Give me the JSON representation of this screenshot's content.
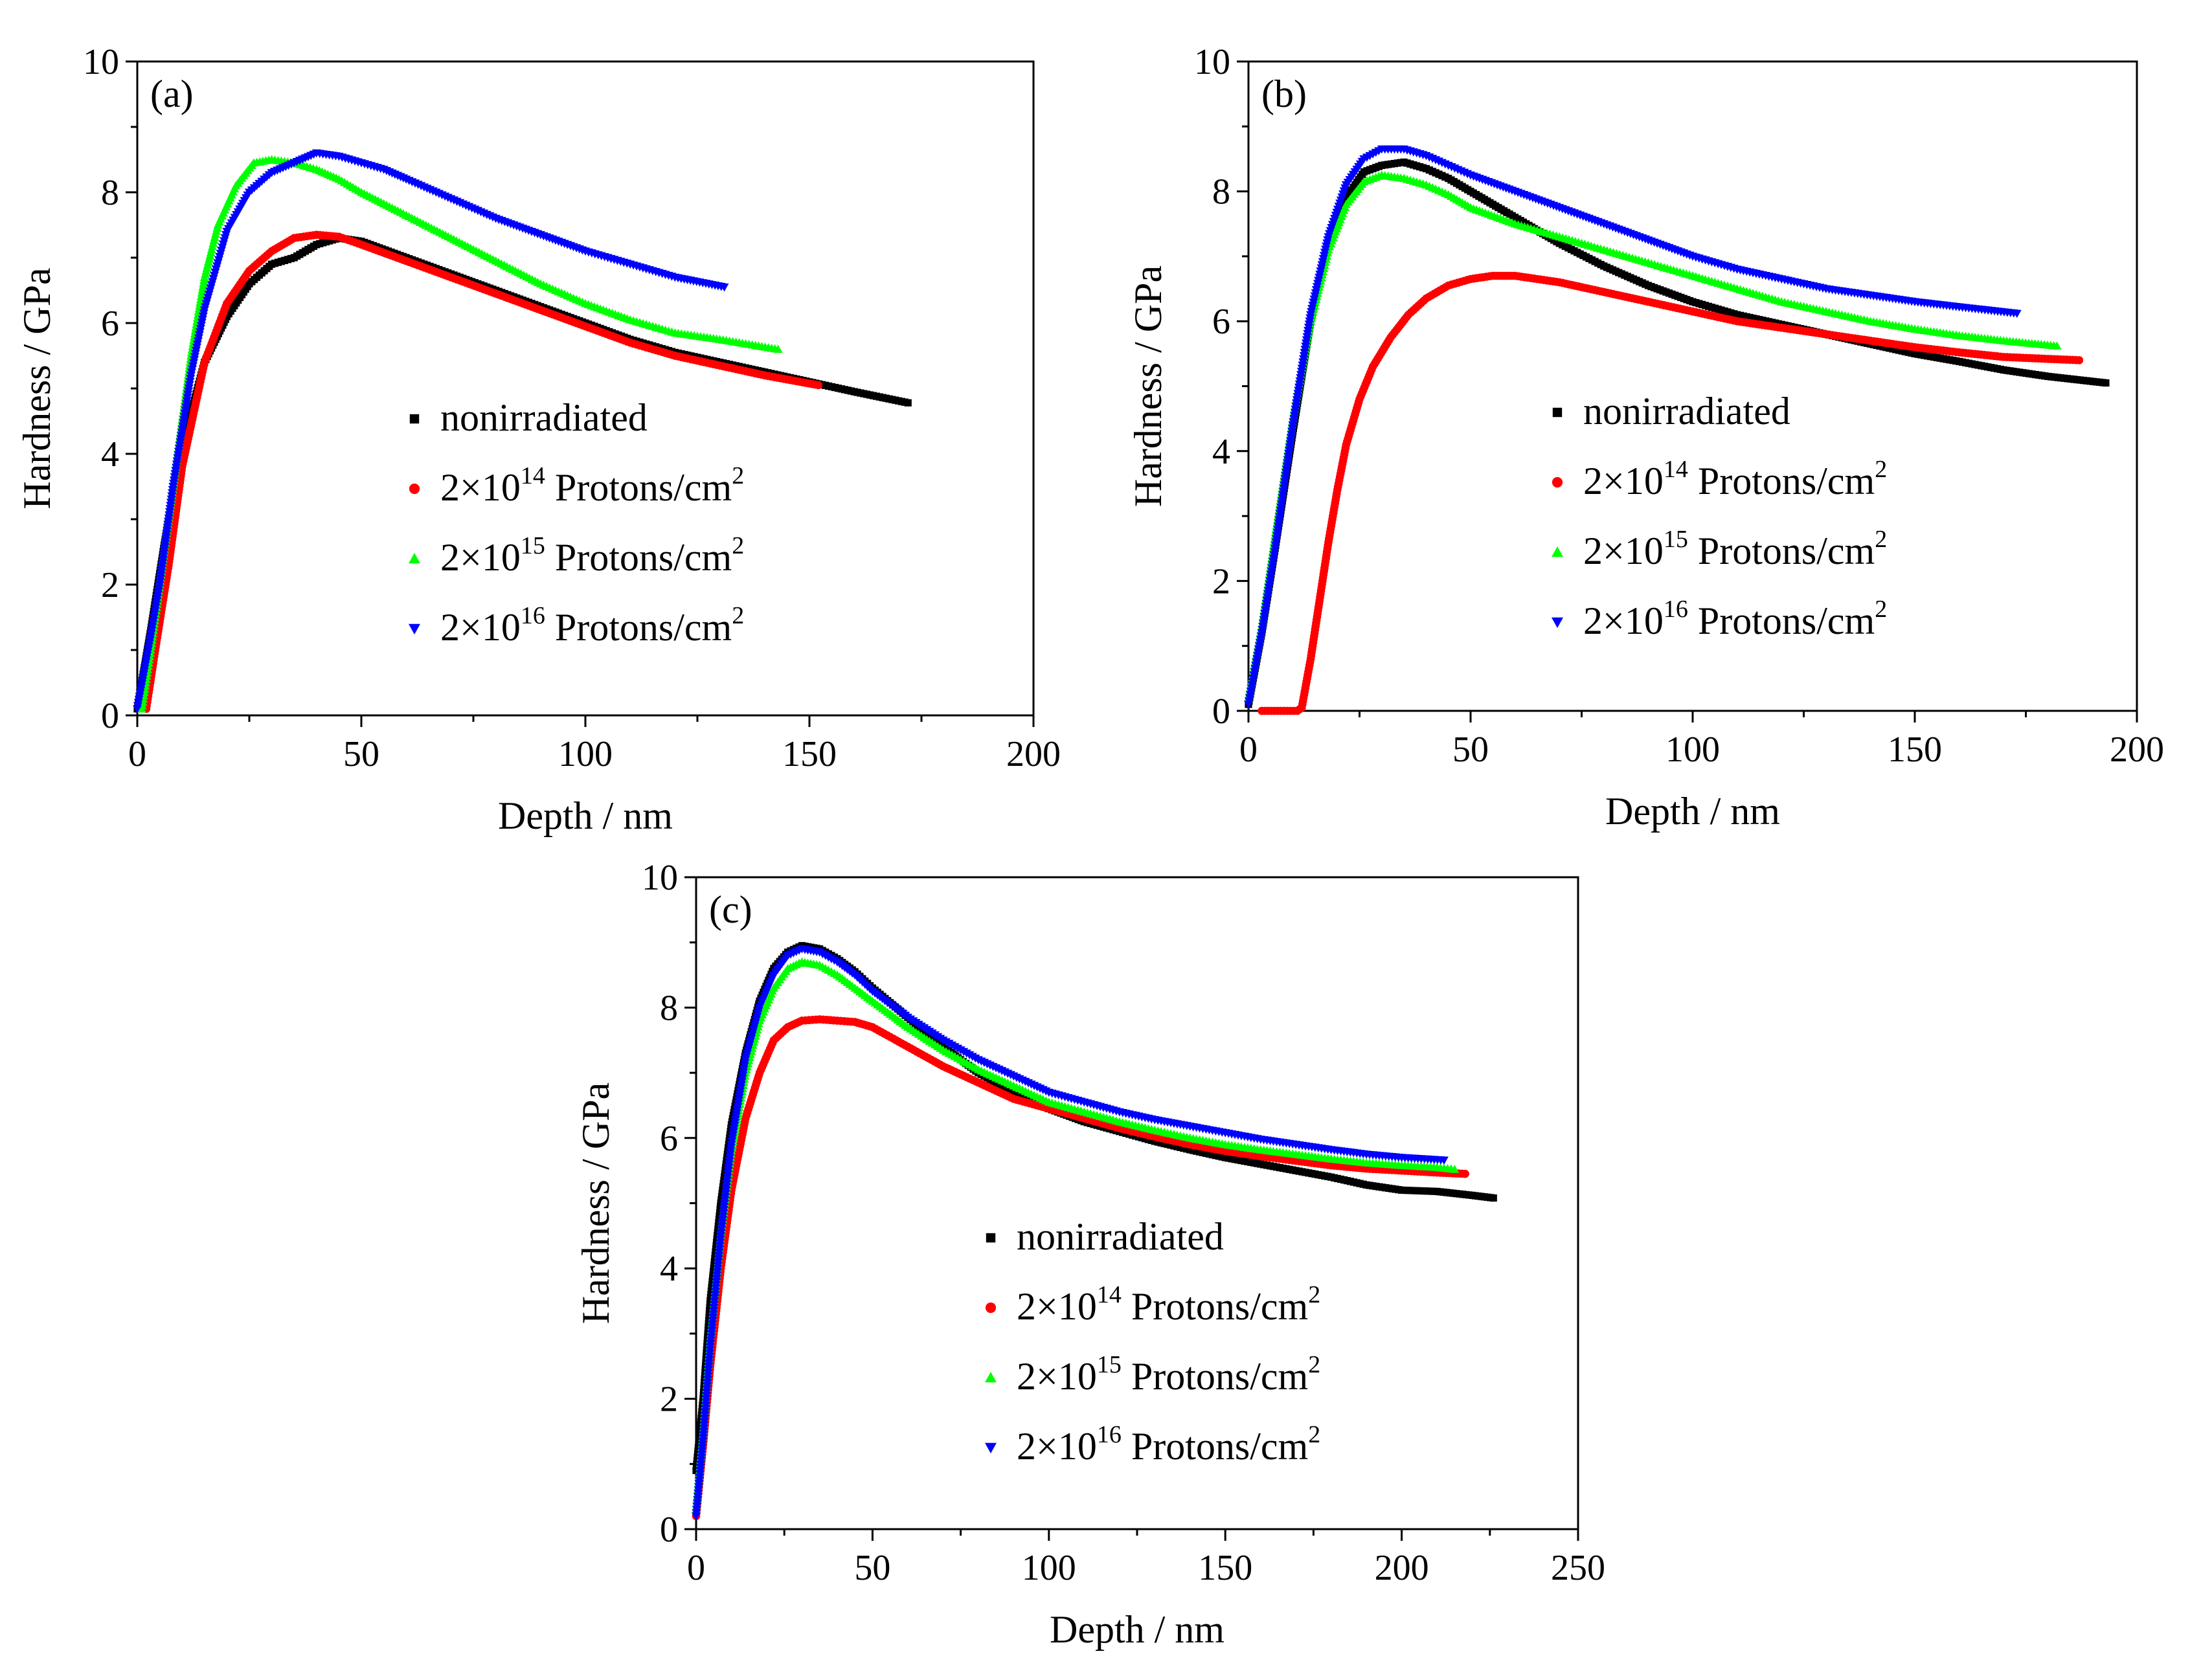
{
  "chart_data": [
    {
      "panel_label": "(a)",
      "type": "scatter",
      "xlabel": "Depth / nm",
      "ylabel": "Hardness / GPa",
      "xlim": [
        0,
        200
      ],
      "ylim": [
        0,
        10
      ],
      "xticks": [
        0,
        50,
        100,
        150,
        200
      ],
      "yticks": [
        0,
        2,
        4,
        6,
        8,
        10
      ],
      "legend_placement": "center-right",
      "series": [
        {
          "name": "nonirradiated",
          "marker": "square",
          "color": "#000000",
          "x": [
            0,
            3,
            6,
            10,
            15,
            20,
            25,
            30,
            35,
            40,
            45,
            50,
            60,
            70,
            80,
            90,
            100,
            110,
            120,
            130,
            140,
            150,
            160,
            172
          ],
          "y": [
            0.1,
            1.3,
            2.6,
            4.1,
            5.4,
            6.1,
            6.6,
            6.9,
            7.0,
            7.2,
            7.3,
            7.25,
            7.0,
            6.75,
            6.5,
            6.25,
            6.0,
            5.75,
            5.55,
            5.4,
            5.25,
            5.1,
            4.95,
            4.78
          ]
        },
        {
          "name": "2×10^14 Protons/cm^2",
          "sup1": "14",
          "sup2": "2",
          "marker": "circle",
          "color": "#ff0000",
          "x": [
            2,
            4,
            7,
            10,
            15,
            20,
            25,
            30,
            35,
            40,
            45,
            50,
            60,
            70,
            80,
            90,
            100,
            110,
            120,
            130,
            140,
            152
          ],
          "y": [
            0.1,
            1.0,
            2.3,
            3.8,
            5.4,
            6.3,
            6.8,
            7.1,
            7.3,
            7.35,
            7.32,
            7.2,
            6.95,
            6.7,
            6.45,
            6.2,
            5.95,
            5.7,
            5.5,
            5.35,
            5.2,
            5.05
          ]
        },
        {
          "name": "2×10^15 Protons/cm^2",
          "sup1": "15",
          "sup2": "2",
          "marker": "triangle-up",
          "color": "#00ff00",
          "x": [
            1,
            3,
            5,
            8,
            12,
            15,
            18,
            22,
            26,
            30,
            35,
            40,
            45,
            50,
            60,
            70,
            80,
            90,
            100,
            110,
            120,
            130,
            143
          ],
          "y": [
            0.1,
            1.0,
            2.0,
            3.5,
            5.5,
            6.7,
            7.5,
            8.1,
            8.45,
            8.5,
            8.45,
            8.35,
            8.2,
            8.0,
            7.65,
            7.3,
            6.95,
            6.6,
            6.3,
            6.05,
            5.85,
            5.75,
            5.6
          ]
        },
        {
          "name": "2×10^16 Protons/cm^2",
          "sup1": "16",
          "sup2": "2",
          "marker": "triangle-down",
          "color": "#0000ff",
          "x": [
            0,
            3,
            5,
            8,
            12,
            15,
            20,
            25,
            30,
            35,
            40,
            45,
            50,
            55,
            60,
            70,
            80,
            90,
            100,
            110,
            120,
            131
          ],
          "y": [
            0.1,
            1.2,
            2.0,
            3.5,
            5.2,
            6.2,
            7.4,
            8.0,
            8.3,
            8.45,
            8.6,
            8.55,
            8.45,
            8.35,
            8.2,
            7.9,
            7.6,
            7.35,
            7.1,
            6.9,
            6.7,
            6.55
          ]
        }
      ]
    },
    {
      "panel_label": "(b)",
      "type": "scatter",
      "xlabel": "Depth / nm",
      "ylabel": "Hardness / GPa",
      "xlim": [
        0,
        200
      ],
      "ylim": [
        0,
        10
      ],
      "xticks": [
        0,
        50,
        100,
        150,
        200
      ],
      "yticks": [
        0,
        2,
        4,
        6,
        8,
        10
      ],
      "legend_placement": "center-right",
      "series": [
        {
          "name": "nonirradiated",
          "marker": "square",
          "color": "#000000",
          "x": [
            0,
            3,
            6,
            10,
            14,
            18,
            22,
            26,
            30,
            35,
            40,
            45,
            50,
            60,
            70,
            80,
            90,
            100,
            110,
            120,
            130,
            140,
            150,
            160,
            170,
            180,
            193
          ],
          "y": [
            0.1,
            1.2,
            2.5,
            4.3,
            6.0,
            7.2,
            7.9,
            8.3,
            8.4,
            8.45,
            8.35,
            8.2,
            8.0,
            7.6,
            7.2,
            6.85,
            6.55,
            6.3,
            6.1,
            5.95,
            5.8,
            5.65,
            5.5,
            5.38,
            5.25,
            5.15,
            5.05
          ]
        },
        {
          "name": "2×10^14 Protons/cm^2",
          "sup1": "14",
          "sup2": "2",
          "marker": "circle",
          "color": "#ff0000",
          "x": [
            3,
            8,
            11,
            12,
            14,
            16,
            18,
            20,
            22,
            25,
            28,
            32,
            36,
            40,
            45,
            50,
            55,
            60,
            70,
            80,
            90,
            100,
            110,
            120,
            130,
            140,
            150,
            160,
            170,
            180,
            187
          ],
          "y": [
            0,
            0,
            0,
            0.05,
            0.8,
            1.7,
            2.6,
            3.4,
            4.1,
            4.8,
            5.3,
            5.75,
            6.1,
            6.35,
            6.55,
            6.65,
            6.7,
            6.7,
            6.6,
            6.45,
            6.3,
            6.15,
            6.0,
            5.9,
            5.8,
            5.7,
            5.6,
            5.52,
            5.45,
            5.42,
            5.4
          ]
        },
        {
          "name": "2×10^15 Protons/cm^2",
          "sup1": "15",
          "sup2": "2",
          "marker": "triangle-up",
          "color": "#00ff00",
          "x": [
            0,
            3,
            6,
            10,
            14,
            18,
            22,
            26,
            30,
            35,
            40,
            45,
            50,
            60,
            70,
            80,
            90,
            100,
            110,
            120,
            130,
            140,
            150,
            160,
            170,
            182
          ],
          "y": [
            0.2,
            1.3,
            2.7,
            4.5,
            6.0,
            7.1,
            7.8,
            8.15,
            8.25,
            8.2,
            8.1,
            7.95,
            7.75,
            7.5,
            7.3,
            7.1,
            6.9,
            6.7,
            6.5,
            6.3,
            6.15,
            6.0,
            5.88,
            5.78,
            5.7,
            5.62
          ]
        },
        {
          "name": "2×10^16 Protons/cm^2",
          "sup1": "16",
          "sup2": "2",
          "marker": "triangle-down",
          "color": "#0000ff",
          "x": [
            0,
            3,
            6,
            10,
            14,
            18,
            22,
            26,
            30,
            35,
            40,
            45,
            50,
            60,
            70,
            80,
            90,
            100,
            110,
            120,
            130,
            140,
            150,
            160,
            173
          ],
          "y": [
            0.1,
            1.2,
            2.5,
            4.4,
            6.1,
            7.3,
            8.1,
            8.5,
            8.65,
            8.65,
            8.55,
            8.4,
            8.25,
            8.0,
            7.75,
            7.5,
            7.25,
            7.0,
            6.8,
            6.65,
            6.5,
            6.4,
            6.3,
            6.22,
            6.12
          ]
        }
      ]
    },
    {
      "panel_label": "(c)",
      "type": "scatter",
      "xlabel": "Depth / nm",
      "ylabel": "Hardness / GPa",
      "xlim": [
        0,
        250
      ],
      "ylim": [
        0,
        10
      ],
      "xticks": [
        0,
        50,
        100,
        150,
        200,
        250
      ],
      "yticks": [
        0,
        2,
        4,
        6,
        8,
        10
      ],
      "legend_placement": "center-right",
      "series": [
        {
          "name": "nonirradiated",
          "marker": "square",
          "color": "#000000",
          "x": [
            0,
            2,
            4,
            7,
            10,
            14,
            18,
            22,
            26,
            30,
            35,
            40,
            45,
            50,
            60,
            70,
            80,
            90,
            100,
            110,
            120,
            130,
            140,
            150,
            160,
            170,
            180,
            190,
            200,
            210,
            220,
            226
          ],
          "y": [
            0.9,
            2.0,
            3.5,
            5.0,
            6.2,
            7.3,
            8.1,
            8.6,
            8.85,
            8.95,
            8.9,
            8.75,
            8.55,
            8.3,
            7.85,
            7.4,
            7.0,
            6.7,
            6.45,
            6.25,
            6.1,
            5.95,
            5.82,
            5.7,
            5.6,
            5.5,
            5.4,
            5.28,
            5.2,
            5.18,
            5.12,
            5.08
          ]
        },
        {
          "name": "2×10^14 Protons/cm^2",
          "sup1": "14",
          "sup2": "2",
          "marker": "circle",
          "color": "#ff0000",
          "x": [
            0,
            2,
            4,
            7,
            10,
            14,
            18,
            22,
            26,
            30,
            35,
            40,
            45,
            50,
            60,
            70,
            80,
            90,
            100,
            110,
            120,
            130,
            140,
            150,
            160,
            170,
            180,
            190,
            200,
            210,
            218
          ],
          "y": [
            0.2,
            1.3,
            2.5,
            4.0,
            5.2,
            6.3,
            7.0,
            7.5,
            7.7,
            7.8,
            7.82,
            7.8,
            7.78,
            7.7,
            7.4,
            7.1,
            6.85,
            6.6,
            6.45,
            6.3,
            6.15,
            6.02,
            5.9,
            5.8,
            5.72,
            5.65,
            5.58,
            5.53,
            5.5,
            5.47,
            5.45
          ]
        },
        {
          "name": "2×10^15 Protons/cm^2",
          "sup1": "15",
          "sup2": "2",
          "marker": "triangle-up",
          "color": "#00ff00",
          "x": [
            0,
            2,
            4,
            7,
            10,
            14,
            18,
            22,
            26,
            30,
            35,
            40,
            45,
            50,
            60,
            70,
            80,
            90,
            100,
            110,
            120,
            130,
            140,
            150,
            160,
            170,
            180,
            190,
            200,
            210,
            215
          ],
          "y": [
            0.3,
            1.5,
            2.9,
            4.5,
            5.8,
            7.0,
            7.8,
            8.3,
            8.6,
            8.7,
            8.65,
            8.5,
            8.3,
            8.1,
            7.7,
            7.35,
            7.05,
            6.8,
            6.55,
            6.4,
            6.25,
            6.12,
            6.0,
            5.9,
            5.82,
            5.75,
            5.68,
            5.62,
            5.58,
            5.55,
            5.52
          ]
        },
        {
          "name": "2×10^16 Protons/cm^2",
          "sup1": "16",
          "sup2": "2",
          "marker": "triangle-down",
          "color": "#0000ff",
          "x": [
            0,
            2,
            4,
            7,
            10,
            14,
            18,
            22,
            26,
            30,
            35,
            40,
            45,
            50,
            60,
            70,
            80,
            90,
            100,
            110,
            120,
            130,
            140,
            150,
            160,
            170,
            180,
            190,
            200,
            212
          ],
          "y": [
            0.2,
            1.4,
            2.8,
            4.5,
            5.9,
            7.2,
            8.0,
            8.5,
            8.8,
            8.9,
            8.85,
            8.7,
            8.5,
            8.25,
            7.85,
            7.5,
            7.2,
            6.95,
            6.7,
            6.55,
            6.4,
            6.28,
            6.18,
            6.08,
            5.98,
            5.9,
            5.82,
            5.75,
            5.7,
            5.66
          ]
        }
      ]
    }
  ]
}
